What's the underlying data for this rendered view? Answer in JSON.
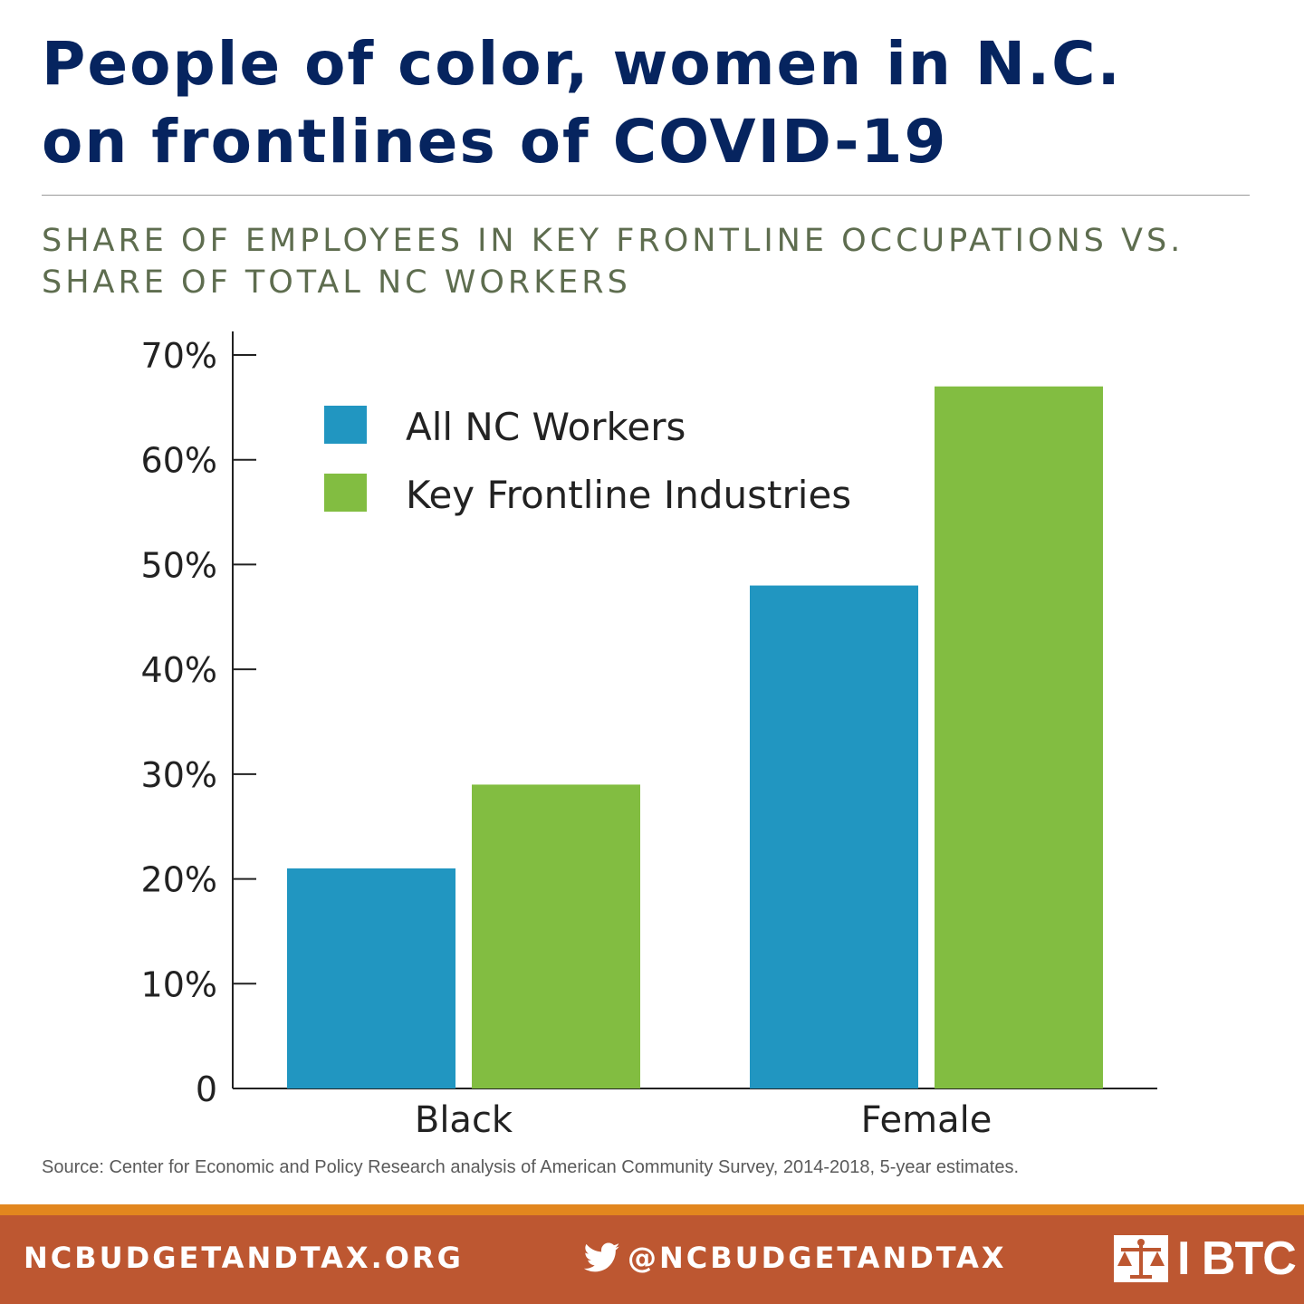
{
  "header": {
    "title_line1": "People of color, women in N.C.",
    "title_line2": "on frontlines of COVID-19",
    "subtitle_line1": "SHARE OF EMPLOYEES IN KEY FRONTLINE OCCUPATIONS VS.",
    "subtitle_line2": "SHARE OF TOTAL NC WORKERS"
  },
  "chart_data": {
    "type": "bar",
    "title": "",
    "xlabel": "",
    "ylabel": "",
    "categories": [
      "Black",
      "Female"
    ],
    "series": [
      {
        "name": "All NC Workers",
        "values": [
          21,
          48
        ],
        "color": "#2196c1"
      },
      {
        "name": "Key Frontline Industries",
        "values": [
          29,
          67
        ],
        "color": "#82bd41"
      }
    ],
    "ylim": [
      0,
      70
    ],
    "yticks": [
      {
        "value": 0,
        "label": "0"
      },
      {
        "value": 10,
        "label": "10%"
      },
      {
        "value": 20,
        "label": "20%"
      },
      {
        "value": 30,
        "label": "30%"
      },
      {
        "value": 40,
        "label": "40%"
      },
      {
        "value": 50,
        "label": "50%"
      },
      {
        "value": 60,
        "label": "60%"
      },
      {
        "value": 70,
        "label": "70%"
      }
    ],
    "grid": false,
    "legend_position": "top-left"
  },
  "source": "Source: Center for Economic and Policy Research analysis of American Community Survey, 2014-2018, 5-year estimates.",
  "footer": {
    "website": "NCBUDGETANDTAX.ORG",
    "twitter_handle": "@NCBUDGETANDTAX",
    "twitter_icon": "twitter-bird-icon",
    "logo_text": "BTC",
    "logo_mark": "scales-of-justice-icon"
  },
  "colors": {
    "title": "#06245f",
    "subtitle": "#5e6d4f",
    "footer_bg": "#bd5731",
    "footer_accent": "#e2861e"
  }
}
